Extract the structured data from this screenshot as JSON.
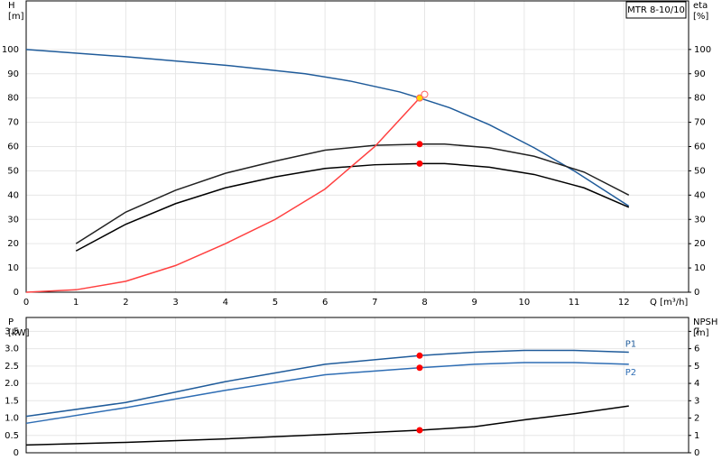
{
  "chart_data": [
    {
      "type": "line",
      "label": "MTR 8-10/10",
      "y_label": "H",
      "y_unit": "[m]",
      "y2_label": "eta",
      "y2_unit": "[%]",
      "x_label": "Q [m³/h]",
      "xlim": [
        0,
        13.3
      ],
      "xticks": [
        0,
        1,
        2,
        3,
        4,
        5,
        6,
        7,
        8,
        9,
        10,
        11,
        12
      ],
      "xtick_labels": true,
      "ylim": [
        0,
        120
      ],
      "yticks": [
        0,
        10,
        20,
        30,
        40,
        50,
        60,
        70,
        80,
        90,
        100
      ],
      "y2lim": [
        0,
        120
      ],
      "y2ticks": [
        0,
        10,
        20,
        30,
        40,
        50,
        60,
        70,
        80,
        90,
        100
      ],
      "grid": true,
      "series": [
        {
          "color": "#1f5b9a",
          "x": [
            0,
            2,
            4,
            5.6,
            6.5,
            7.5,
            7.9,
            8.5,
            9.3,
            10.2,
            11,
            12.1
          ],
          "values": [
            100,
            97,
            93.5,
            90,
            87,
            82.5,
            80,
            76,
            69,
            59.5,
            50,
            35.5
          ]
        },
        {
          "color": "#222222",
          "x": [
            1,
            2,
            3,
            4,
            5,
            6,
            7,
            8,
            8.4,
            9.3,
            10.2,
            11.2,
            12.1
          ],
          "values": [
            20,
            33,
            42,
            49,
            54,
            58.5,
            60.5,
            61,
            61,
            59.5,
            56,
            49.5,
            40
          ]
        },
        {
          "color": "#000000",
          "x": [
            1,
            2,
            3,
            4,
            5,
            6,
            7,
            7.9,
            8.4,
            9.3,
            10.2,
            11.2,
            12.1
          ],
          "values": [
            17,
            28,
            36.5,
            43,
            47.5,
            51,
            52.5,
            53,
            53,
            51.5,
            48.5,
            43,
            35
          ]
        },
        {
          "color": "#ff4040",
          "x": [
            0,
            1,
            2,
            3,
            4,
            5,
            6,
            7,
            7.9,
            8
          ],
          "values": [
            0,
            1,
            4.5,
            11,
            20,
            30,
            42.5,
            60,
            80,
            81.5
          ]
        }
      ],
      "points": [
        {
          "x": 7.9,
          "y": 61,
          "color": "#ff0000"
        },
        {
          "x": 7.9,
          "y": 53,
          "color": "#ff0000"
        },
        {
          "x": 7.9,
          "y": 80,
          "color": "#ffd700"
        },
        {
          "x": 8,
          "y": 81.5,
          "color": "#ffffff"
        }
      ]
    },
    {
      "type": "line",
      "y_label": "P",
      "y_unit": "[kW]",
      "y2_label": "NPSH",
      "y2_unit": "[m]",
      "xlim": [
        0,
        13.3
      ],
      "xticks": [
        0,
        1,
        2,
        3,
        4,
        5,
        6,
        7,
        8,
        9,
        10,
        11,
        12
      ],
      "xtick_labels": false,
      "ylim": [
        0,
        3.9
      ],
      "yticks": [
        0,
        0.5,
        {
          "value": 1,
          "label": "1.0"
        },
        1.5,
        {
          "value": 2,
          "label": "2.0"
        },
        2.5,
        {
          "value": 3,
          "label": "3.0"
        },
        3.5
      ],
      "y2lim": [
        0,
        7.8
      ],
      "y2ticks": [
        0,
        1,
        2,
        3,
        4,
        5,
        6,
        7
      ],
      "grid": true,
      "series": [
        {
          "name": "P1",
          "color": "#1f5b9a",
          "x": [
            0,
            2,
            4,
            6,
            7.9,
            9,
            10,
            11,
            12.1
          ],
          "values": [
            1.05,
            1.45,
            2.05,
            2.55,
            2.8,
            2.9,
            2.95,
            2.95,
            2.9
          ]
        },
        {
          "name": "P2",
          "color": "#2e6db4",
          "x": [
            0,
            2,
            4,
            6,
            7.9,
            9,
            10,
            11,
            12.1
          ],
          "values": [
            0.85,
            1.3,
            1.8,
            2.25,
            2.45,
            2.55,
            2.6,
            2.6,
            2.55
          ]
        },
        {
          "color": "#000000",
          "axis": "y2",
          "x": [
            0,
            2,
            4,
            6,
            7.9,
            9,
            10,
            11,
            12.1
          ],
          "values": [
            0.45,
            0.6,
            0.8,
            1.05,
            1.3,
            1.5,
            1.9,
            2.25,
            2.7
          ]
        }
      ],
      "points": [
        {
          "x": 7.9,
          "y": 2.8,
          "color": "#ff0000"
        },
        {
          "x": 7.9,
          "y": 2.45,
          "color": "#ff0000"
        },
        {
          "x": 7.9,
          "y": 1.3,
          "color": "#ff0000",
          "axis": "y2"
        }
      ]
    }
  ]
}
